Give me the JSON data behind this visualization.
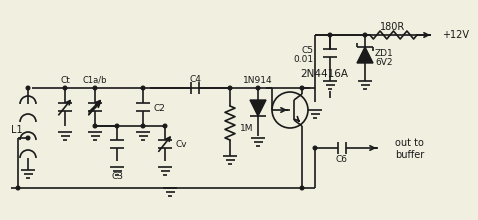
{
  "bg_color": "#f0efe0",
  "line_color": "#1a1a1a",
  "transistor_label": "2N4416A",
  "diode_label": "1N914",
  "L1_label": "L1",
  "Ct_label": "Ct",
  "C1ab_label": "C1a/b",
  "C2_label": "C2",
  "C3_label": "C3",
  "C4_label": "C4",
  "Cv_label": "Cv",
  "R1M_label": "1M",
  "C5_label": "C5",
  "C5v_label": "0.01",
  "ZD1_label": "ZD1",
  "ZD1v_label": "6V2",
  "R180_label": "180R",
  "V12_label": "+12V",
  "C6_label": "C6",
  "out_label1": "out to",
  "out_label2": "buffer"
}
